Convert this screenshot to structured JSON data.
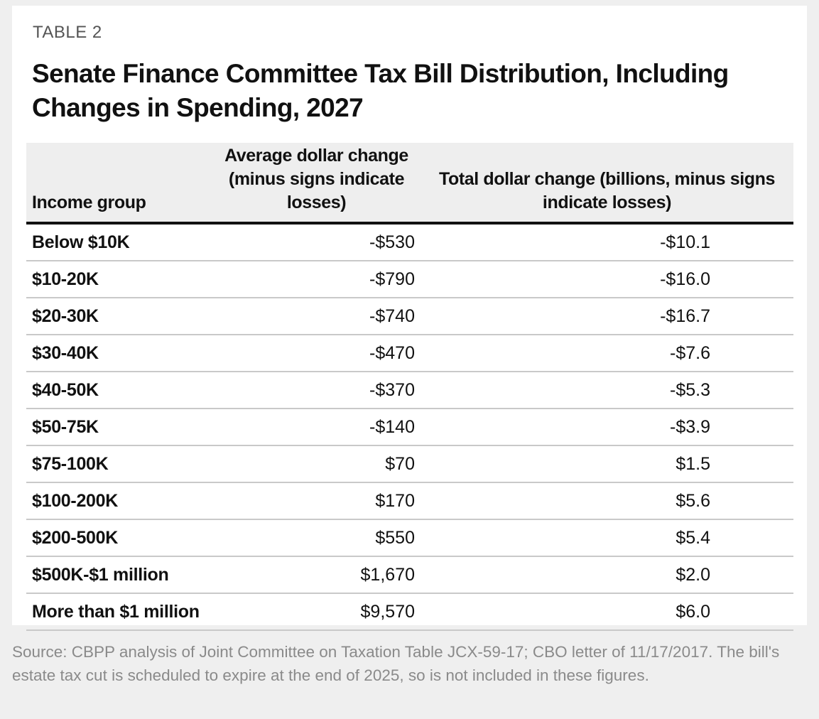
{
  "eyebrow": "TABLE 2",
  "title": "Senate Finance Committee Tax Bill Distribution, Including Changes in Spending, 2027",
  "chart_data": {
    "type": "table",
    "title": "Senate Finance Committee Tax Bill Distribution, Including Changes in Spending, 2027",
    "columns": [
      "Income group",
      "Average dollar change (minus signs indicate losses)",
      "Total dollar change (billions, minus signs indicate losses)"
    ],
    "rows": [
      [
        "Below $10K",
        "-$530",
        "-$10.1"
      ],
      [
        "$10-20K",
        "-$790",
        "-$16.0"
      ],
      [
        "$20-30K",
        "-$740",
        "-$16.7"
      ],
      [
        "$30-40K",
        "-$470",
        "-$7.6"
      ],
      [
        "$40-50K",
        "-$370",
        "-$5.3"
      ],
      [
        "$50-75K",
        "-$140",
        "-$3.9"
      ],
      [
        "$75-100K",
        "$70",
        "$1.5"
      ],
      [
        "$100-200K",
        "$170",
        "$5.6"
      ],
      [
        "$200-500K",
        "$550",
        "$5.4"
      ],
      [
        "$500K-$1 million",
        "$1,670",
        "$2.0"
      ],
      [
        "More than $1 million",
        "$9,570",
        "$6.0"
      ]
    ]
  },
  "source": "Source: CBPP analysis of Joint Committee on Taxation Table JCX-59-17; CBO letter of 11/17/2017. The bill's estate tax cut is scheduled to expire at the end of 2025, so is not included in these figures."
}
